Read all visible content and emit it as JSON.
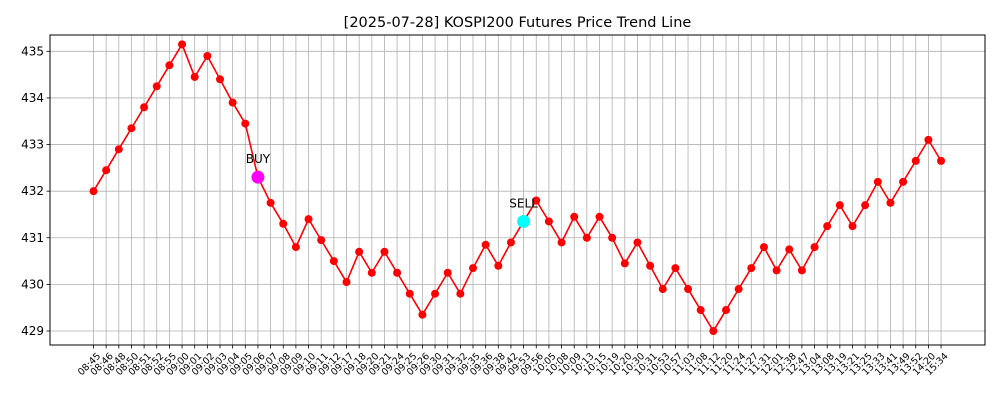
{
  "chart_data": {
    "type": "line",
    "title": "[2025-07-28] KOSPI200 Futures Price Trend Line",
    "xlabel": "",
    "ylabel": "",
    "ylim": [
      428.7,
      435.35
    ],
    "y_ticks": [
      429,
      430,
      431,
      432,
      433,
      434,
      435
    ],
    "grid": true,
    "line_color": "#ff0000",
    "marker_color": "#ff0000",
    "x": [
      "08:45",
      "08:46",
      "08:48",
      "08:50",
      "08:51",
      "08:52",
      "08:55",
      "09:00",
      "09:01",
      "09:02",
      "09:03",
      "09:04",
      "09:05",
      "09:06",
      "09:07",
      "09:08",
      "09:09",
      "09:10",
      "09:11",
      "09:12",
      "09:17",
      "09:18",
      "09:20",
      "09:21",
      "09:24",
      "09:25",
      "09:26",
      "09:30",
      "09:31",
      "09:32",
      "09:35",
      "09:36",
      "09:38",
      "09:42",
      "09:53",
      "09:56",
      "10:05",
      "10:08",
      "10:09",
      "10:13",
      "10:15",
      "10:19",
      "10:20",
      "10:30",
      "10:31",
      "10:53",
      "10:57",
      "11:03",
      "11:08",
      "11:12",
      "11:20",
      "11:24",
      "11:27",
      "11:31",
      "12:01",
      "12:38",
      "12:47",
      "13:04",
      "13:08",
      "13:19",
      "13:21",
      "13:25",
      "13:33",
      "13:41",
      "13:49",
      "13:52",
      "14:20",
      "15:34"
    ],
    "values": [
      432.0,
      432.45,
      432.9,
      433.35,
      433.8,
      434.25,
      434.7,
      435.15,
      434.45,
      434.9,
      434.4,
      433.9,
      433.45,
      432.3,
      431.75,
      431.3,
      430.8,
      431.4,
      430.95,
      430.5,
      430.05,
      430.7,
      430.25,
      430.7,
      430.25,
      429.8,
      429.35,
      429.8,
      430.25,
      429.8,
      430.35,
      430.85,
      430.4,
      430.9,
      431.35,
      431.8,
      431.35,
      430.9,
      431.45,
      431.0,
      431.45,
      431.0,
      430.45,
      430.9,
      430.4,
      429.9,
      430.35,
      429.9,
      429.45,
      429.0,
      429.45,
      429.9,
      430.35,
      430.8,
      430.3,
      430.75,
      430.3,
      430.8,
      431.25,
      431.7,
      431.25,
      431.7,
      432.2,
      431.75,
      432.2,
      432.65,
      433.1,
      432.65
    ],
    "annotations": [
      {
        "label": "BUY",
        "index": 13,
        "color": "#ff00ff"
      },
      {
        "label": "SELL",
        "index": 34,
        "color": "#00ffff"
      }
    ]
  }
}
